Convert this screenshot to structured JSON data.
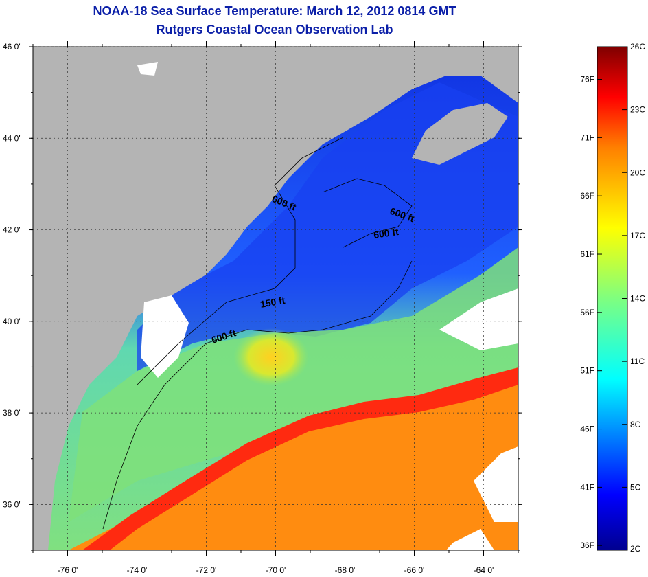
{
  "header": {
    "title": "NOAA-18 Sea Surface Temperature:  March 12, 2012 0814 GMT",
    "subtitle": "Rutgers Coastal Ocean Observation Lab"
  },
  "map": {
    "lat_range": [
      35,
      46
    ],
    "lon_range": [
      -77,
      -63
    ],
    "lat_ticks": [
      {
        "value": 46,
        "label": "46 0'"
      },
      {
        "value": 44,
        "label": "44 0'"
      },
      {
        "value": 42,
        "label": "42 0'"
      },
      {
        "value": 40,
        "label": "40 0'"
      },
      {
        "value": 38,
        "label": "38 0'"
      },
      {
        "value": 36,
        "label": "36 0'"
      }
    ],
    "lon_ticks": [
      {
        "value": -76,
        "label": "-76 0'"
      },
      {
        "value": -74,
        "label": "-74 0'"
      },
      {
        "value": -72,
        "label": "-72 0'"
      },
      {
        "value": -70,
        "label": "-70 0'"
      },
      {
        "value": -68,
        "label": "-68 0'"
      },
      {
        "value": -66,
        "label": "-66 0'"
      },
      {
        "value": -64,
        "label": "-64 0'"
      }
    ],
    "contour_labels": [
      {
        "text": "600 ft"
      },
      {
        "text": "600 ft"
      },
      {
        "text": "600 ft"
      },
      {
        "text": "150 ft"
      },
      {
        "text": "600 ft"
      }
    ],
    "land_color": "#b4b4b4",
    "cloud_color": "#ffffff"
  },
  "colorbar": {
    "range_c": [
      2,
      26
    ],
    "fahrenheit_labels": [
      "76F",
      "71F",
      "66F",
      "61F",
      "56F",
      "51F",
      "46F",
      "41F",
      "36F"
    ],
    "celsius_labels": [
      "26C",
      "23C",
      "20C",
      "17C",
      "14C",
      "11C",
      "8C",
      "5C",
      "2C"
    ],
    "colors": [
      "#7f0000",
      "#ff0000",
      "#ff7f00",
      "#ffff00",
      "#7fff7f",
      "#00ffff",
      "#007fff",
      "#0000ff",
      "#00008f"
    ]
  }
}
